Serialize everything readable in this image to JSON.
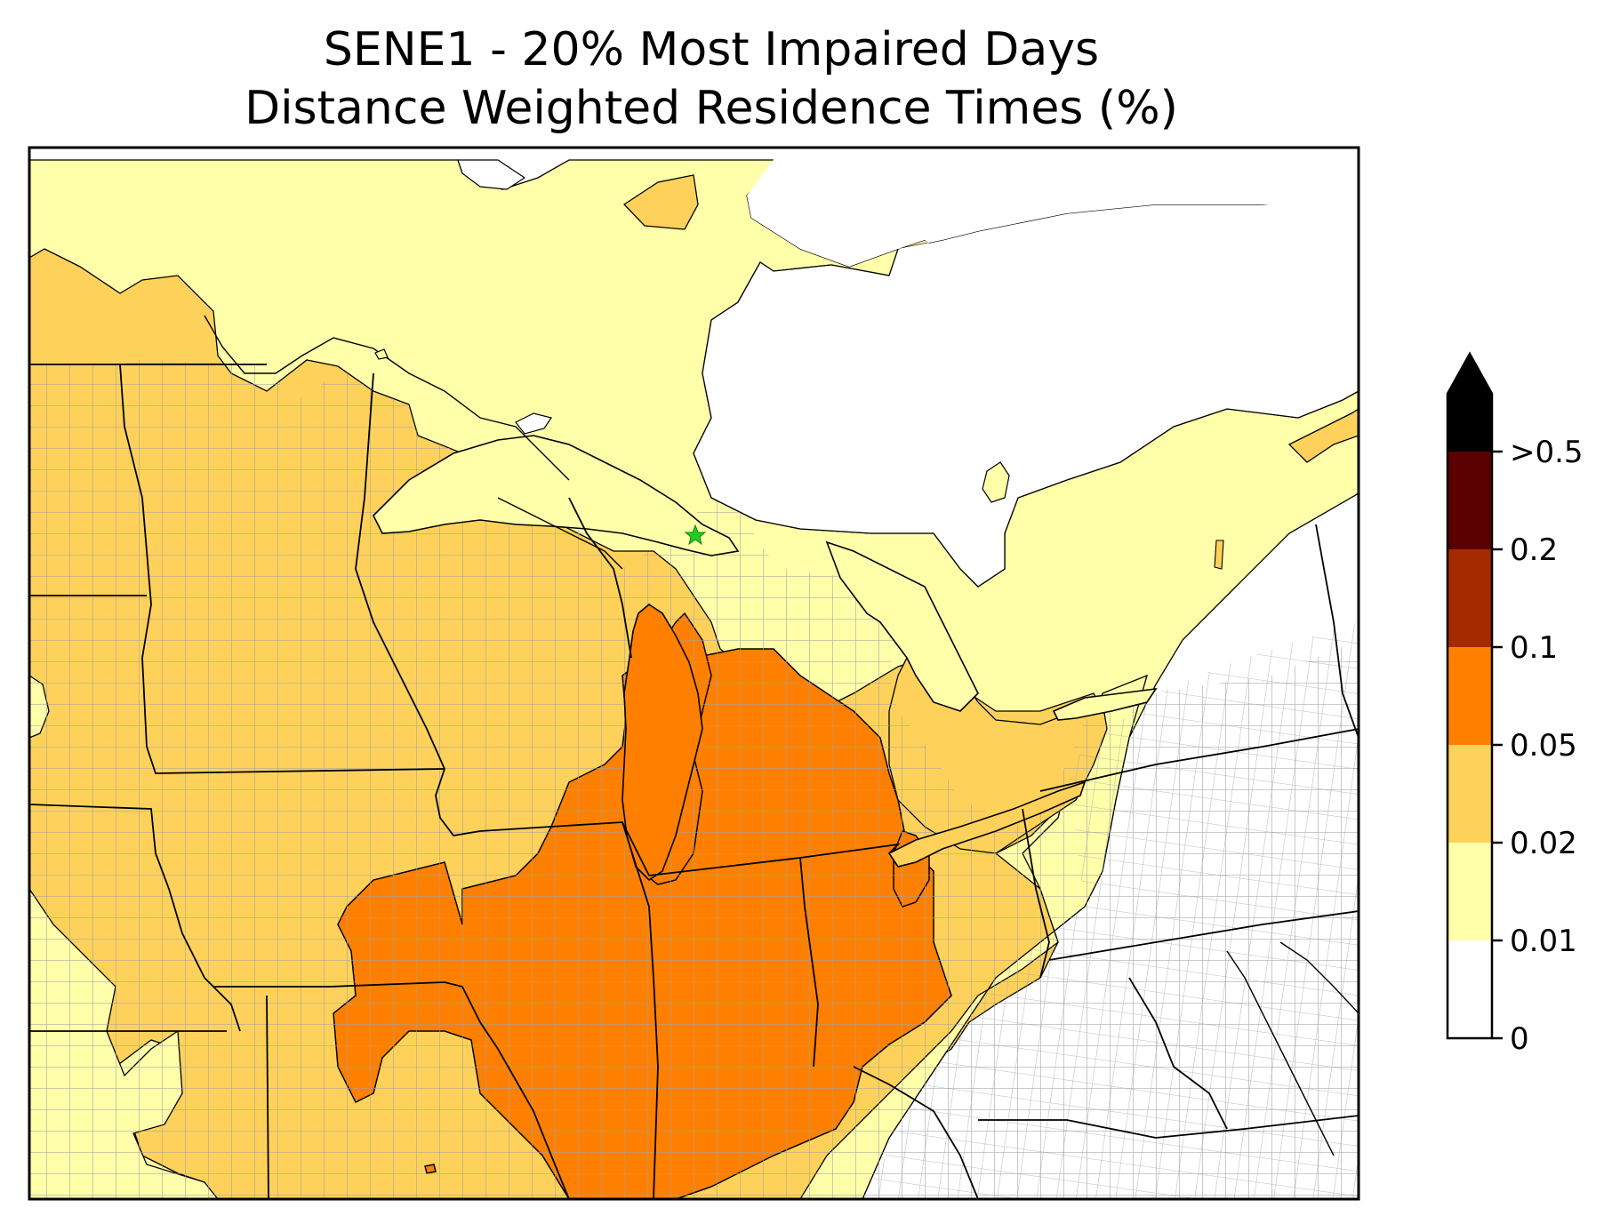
{
  "title": {
    "line1": "SENE1 - 20% Most Impaired Days",
    "line2": "Distance Weighted Residence Times (%)"
  },
  "colorbar": {
    "tick_labels": [
      ">0.5",
      "0.2",
      "0.1",
      "0.05",
      "0.02",
      "0.01",
      "0"
    ],
    "bins": [
      {
        "range": "0-0.01",
        "color": "#ffffff"
      },
      {
        "range": "0.01-0.02",
        "color": "#ffffaa"
      },
      {
        "range": "0.02-0.05",
        "color": "#fed25a"
      },
      {
        "range": "0.05-0.1",
        "color": "#ff8000"
      },
      {
        "range": "0.1-0.2",
        "color": "#a52a00"
      },
      {
        "range": "0.2-0.5",
        "color": "#5a0000"
      },
      {
        "range": ">0.5",
        "color": "#000000"
      }
    ],
    "extend": "max"
  },
  "map": {
    "site_marker": {
      "name": "SENE1",
      "symbol": "star-icon",
      "color": "#22cc22"
    },
    "land_color": "#ffffaa",
    "water_color": "#ffffff",
    "state_border_color": "#000000",
    "county_border_color": "#a0a0a0"
  }
}
